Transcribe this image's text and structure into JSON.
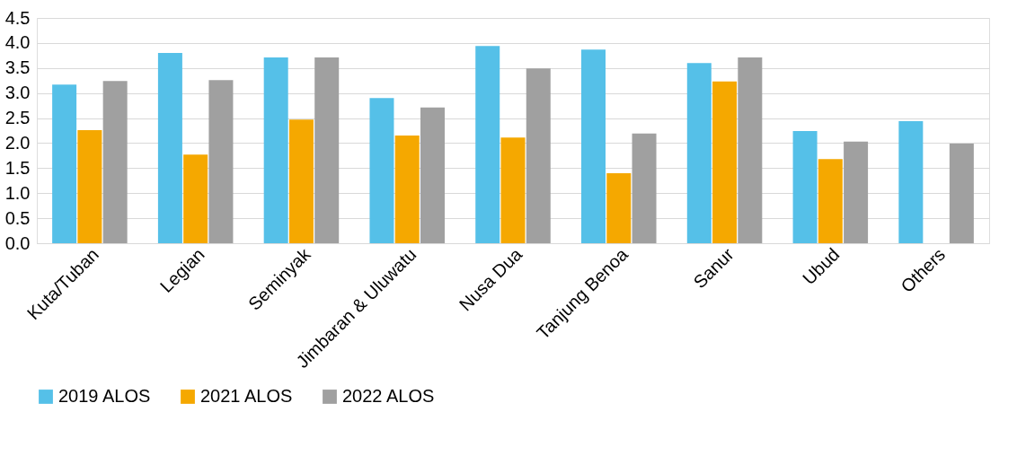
{
  "chart_data": {
    "type": "bar",
    "categories": [
      "Kuta/Tuban",
      "Legian",
      "Seminyak",
      "Jimbaran & Uluwatu",
      "Nusa Dua",
      "Tanjung Benoa",
      "Sanur",
      "Ubud",
      "Others"
    ],
    "series": [
      {
        "name": "2019 ALOS",
        "color": "#55c0e8",
        "values": [
          3.17,
          3.8,
          3.71,
          2.9,
          3.94,
          3.87,
          3.6,
          2.24,
          2.44
        ]
      },
      {
        "name": "2021 ALOS",
        "color": "#f5a800",
        "values": [
          2.26,
          1.77,
          2.47,
          2.15,
          2.11,
          1.4,
          3.23,
          1.68,
          null
        ]
      },
      {
        "name": "2022 ALOS",
        "color": "#a0a0a0",
        "values": [
          3.24,
          3.26,
          3.71,
          2.71,
          3.49,
          2.19,
          3.71,
          2.03,
          1.99
        ]
      }
    ],
    "ylim": [
      0,
      4.5
    ],
    "yticks": [
      {
        "value": 0,
        "label": "0.0"
      },
      {
        "value": 0.5,
        "label": "0.5"
      },
      {
        "value": 1,
        "label": "1.0"
      },
      {
        "value": 1.5,
        "label": "1.5"
      },
      {
        "value": 2,
        "label": "2.0"
      },
      {
        "value": 2.5,
        "label": "2.5"
      },
      {
        "value": 3,
        "label": "3.0"
      },
      {
        "value": 3.5,
        "label": "3.5"
      },
      {
        "value": 4,
        "label": "4.0"
      },
      {
        "value": 4.5,
        "label": "4.5"
      }
    ],
    "grid": "y",
    "legend": "bottom"
  }
}
